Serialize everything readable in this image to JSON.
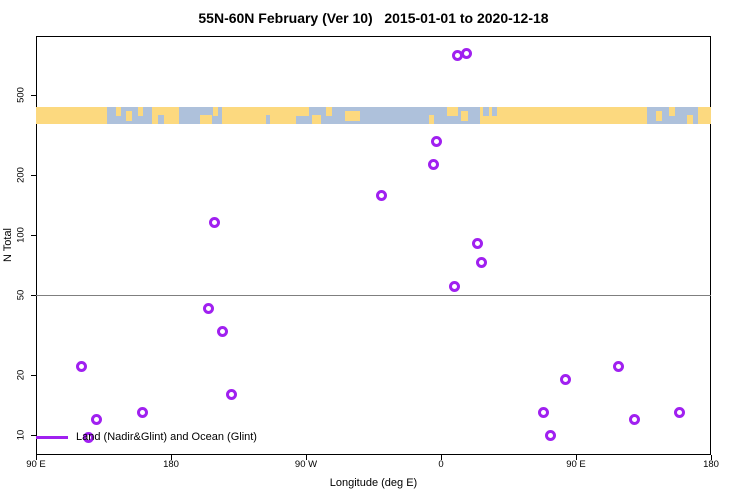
{
  "title": "55N-60N February (Ver 10)   2015-01-01 to 2020-12-18",
  "chart_data": {
    "type": "scatter",
    "title": "55N-60N February (Ver 10)   2015-01-01 to 2020-12-18",
    "xlabel": "Longitude (deg E)",
    "ylabel": "N Total",
    "x_axis": {
      "scale": "linear",
      "note": "longitude shown as continuous 450-degree span, 90E eastward to 180",
      "range": [
        90,
        540
      ],
      "ticks": [
        {
          "deg": 90,
          "label": "90 E"
        },
        {
          "deg": 180,
          "label": "180"
        },
        {
          "deg": 270,
          "label": "90 W"
        },
        {
          "deg": 360,
          "label": "0"
        },
        {
          "deg": 450,
          "label": "90 E"
        },
        {
          "deg": 540,
          "label": "180"
        }
      ]
    },
    "y_axis": {
      "scale": "log",
      "range": [
        8,
        970
      ],
      "ticks": [
        {
          "value": 10,
          "label": "10"
        },
        {
          "value": 20,
          "label": "20"
        },
        {
          "value": 50,
          "label": "50"
        },
        {
          "value": 100,
          "label": "100"
        },
        {
          "value": 200,
          "label": "200"
        },
        {
          "value": 500,
          "label": "500"
        }
      ]
    },
    "reference_line": {
      "y": 50,
      "color": "#7f7f7f"
    },
    "series": [
      {
        "name": "Land (Nadir&Glint) and Ocean (Glint)",
        "marker": "open-circle",
        "color": "#A020F0",
        "points": [
          {
            "lon": 120,
            "n": 22
          },
          {
            "lon": 130,
            "n": 12
          },
          {
            "lon": 161,
            "n": 13
          },
          {
            "lon": 205,
            "n": 43
          },
          {
            "lon": 209,
            "n": 116
          },
          {
            "lon": 214,
            "n": 33
          },
          {
            "lon": 220,
            "n": 16
          },
          {
            "lon": 320,
            "n": 158
          },
          {
            "lon": 355,
            "n": 224
          },
          {
            "lon": 357,
            "n": 295
          },
          {
            "lon": 369,
            "n": 55
          },
          {
            "lon": 371,
            "n": 790
          },
          {
            "lon": 377,
            "n": 810
          },
          {
            "lon": 384,
            "n": 91
          },
          {
            "lon": 387,
            "n": 73
          },
          {
            "lon": 428,
            "n": 13
          },
          {
            "lon": 433,
            "n": 10
          },
          {
            "lon": 443,
            "n": 19
          },
          {
            "lon": 478,
            "n": 22
          },
          {
            "lon": 489,
            "n": 12
          },
          {
            "lon": 519,
            "n": 13
          }
        ]
      }
    ],
    "map_strip": {
      "land_color": "#FCD97F",
      "ocean_color": "#AEC1DB",
      "land_segments": [
        {
          "from": 90,
          "to": 137.5
        },
        {
          "from": 167,
          "to": 185
        },
        {
          "from": 214,
          "to": 263
        },
        {
          "from": 386,
          "to": 497.5
        },
        {
          "from": 531,
          "to": 540
        }
      ],
      "land_patches": [
        {
          "from": 143,
          "to": 146.5,
          "v": "top"
        },
        {
          "from": 150,
          "to": 154,
          "v": "mid"
        },
        {
          "from": 158,
          "to": 161,
          "v": "top"
        },
        {
          "from": 199,
          "to": 207,
          "v": "bottom"
        },
        {
          "from": 208,
          "to": 211,
          "v": "top"
        },
        {
          "from": 263,
          "to": 272,
          "v": "top"
        },
        {
          "from": 274,
          "to": 280,
          "v": "bottom"
        },
        {
          "from": 283,
          "to": 287,
          "v": "top"
        },
        {
          "from": 296,
          "to": 306,
          "v": "mid"
        },
        {
          "from": 352,
          "to": 355,
          "v": "bottom"
        },
        {
          "from": 364,
          "to": 371,
          "v": "top"
        },
        {
          "from": 373,
          "to": 378,
          "v": "mid"
        },
        {
          "from": 503,
          "to": 507,
          "v": "mid"
        },
        {
          "from": 512,
          "to": 516,
          "v": "top"
        },
        {
          "from": 524,
          "to": 528,
          "v": "bottom"
        }
      ],
      "ocean_patches": [
        {
          "from": 171,
          "to": 175,
          "v": "bottom"
        },
        {
          "from": 243,
          "to": 246,
          "v": "bottom"
        },
        {
          "from": 388,
          "to": 392,
          "v": "top"
        },
        {
          "from": 394,
          "to": 397,
          "v": "top"
        }
      ]
    },
    "legend": {
      "position": "bottom-left-inside",
      "label": "Land (Nadir&Glint) and Ocean (Glint)"
    }
  }
}
